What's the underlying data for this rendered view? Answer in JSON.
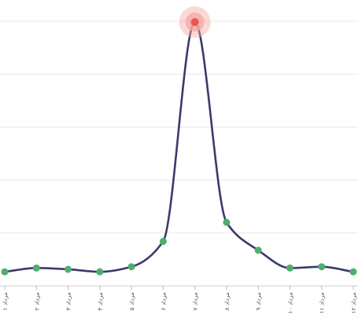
{
  "chart_data": {
    "type": "line",
    "title": "",
    "xlabel": "",
    "ylabel": "",
    "categories": [
      "۱ مرداد",
      "۲ مرداد",
      "۳ مرداد",
      "۴ مرداد",
      "۵ مرداد",
      "۶ مرداد",
      "۷ مرداد",
      "۸ مرداد",
      "۹ مرداد",
      "۱۰ مرداد",
      "۱۱ مرداد",
      "۱۲ مرداد"
    ],
    "series": [
      {
        "values": [
          3,
          6,
          5,
          3,
          7,
          27,
          200,
          42,
          20,
          6,
          7,
          3
        ]
      }
    ],
    "ylim": [
      0,
      200
    ],
    "y_gridlines": 5,
    "y_tick_labels_shown": false,
    "grid": true,
    "legend": "none",
    "highlight_index": 6,
    "colors": {
      "line": "#3b3a6a",
      "point": "#4caf6e",
      "highlight_point": "#e8574a",
      "highlight_halo": "#f3a8a2",
      "grid": "#e8e8e8"
    }
  }
}
